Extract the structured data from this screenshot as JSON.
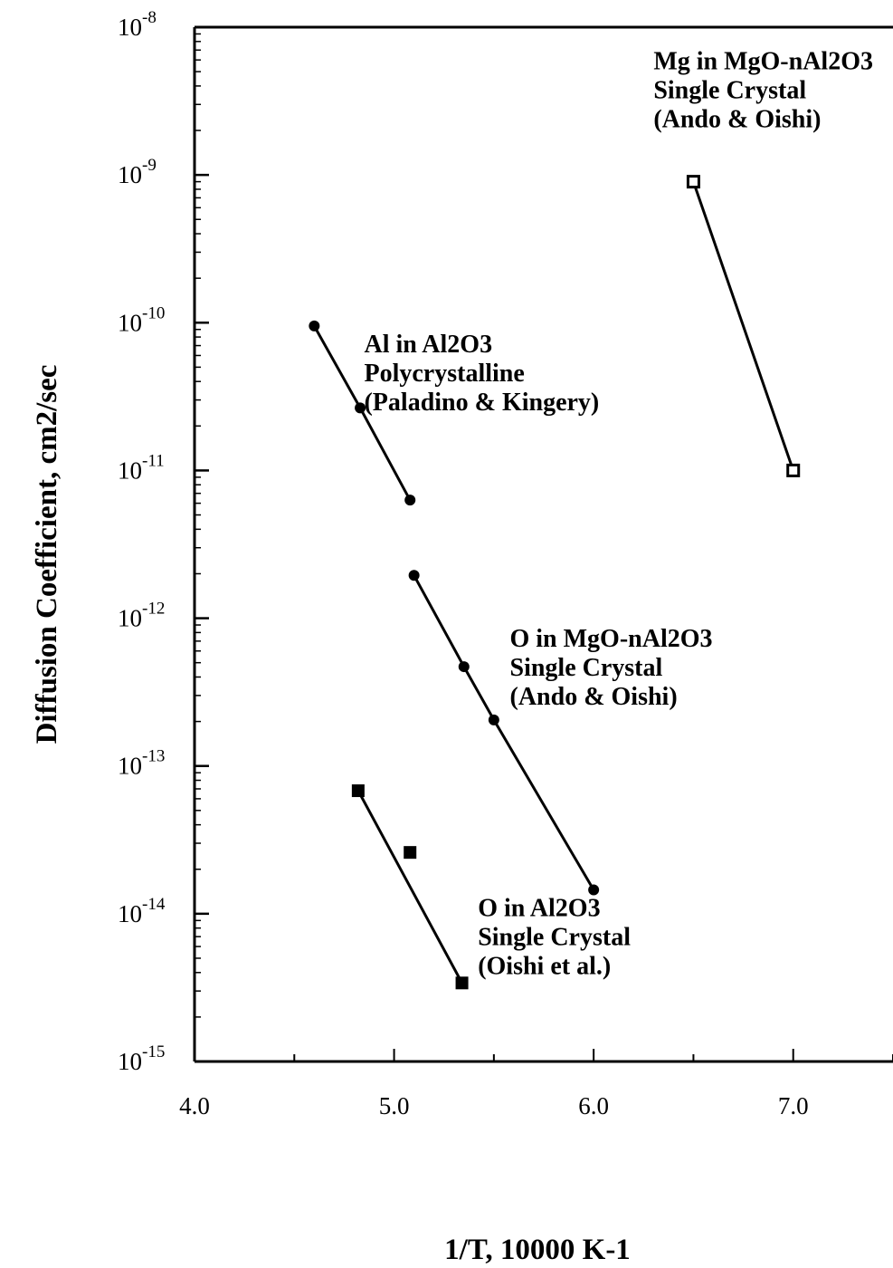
{
  "chart_data": {
    "type": "scatter",
    "title": "",
    "xlabel": "1/T,  10000  K-1",
    "ylabel": "Diffusion  Coefficient,  cm2/sec",
    "xlim": [
      4.0,
      7.5
    ],
    "ylim": [
      1e-15,
      1e-08
    ],
    "yscale": "log",
    "x_ticks": [
      "4.0",
      "5.0",
      "6.0",
      "7.0"
    ],
    "y_tick_base": "10",
    "y_tick_exponents": [
      "-8",
      "-9",
      "-10",
      "-11",
      "-12",
      "-13",
      "-14",
      "-15"
    ],
    "grid": false,
    "legend": "none",
    "series": [
      {
        "name": "Mg in MgO-nAl2O3 Single Crystal (Ando & Oishi)",
        "label_lines": [
          "Mg in MgO-nAl2O3",
          "Single Crystal",
          "(Ando & Oishi)"
        ],
        "marker": "open-square",
        "points": [
          [
            6.5,
            9e-10
          ],
          [
            7.0,
            1e-11
          ]
        ]
      },
      {
        "name": "Al in Al2O3 Polycrystalline (Paladino & Kingery)",
        "label_lines": [
          "Al in Al2O3",
          "Polycrystalline",
          "(Paladino & Kingery)"
        ],
        "marker": "diamond",
        "points": [
          [
            4.6,
            9.5e-11
          ],
          [
            4.83,
            2.65e-11
          ],
          [
            5.08,
            6.3e-12
          ]
        ]
      },
      {
        "name": "O in MgO-nAl2O3 Single Crystal (Ando & Oishi)",
        "label_lines": [
          "O in MgO-nAl2O3",
          "Single Crystal",
          "(Ando & Oishi)"
        ],
        "marker": "diamond",
        "points": [
          [
            5.1,
            1.95e-12
          ],
          [
            5.35,
            4.7e-13
          ],
          [
            5.5,
            2.05e-13
          ],
          [
            6.0,
            1.45e-14
          ]
        ]
      },
      {
        "name": "O in Al2O3 Single Crystal (Oishi et al.)",
        "label_lines": [
          "O in Al2O3",
          "Single Crystal",
          "(Oishi et al.)"
        ],
        "marker": "filled-square",
        "points": [
          [
            4.82,
            6.8e-14
          ],
          [
            5.08,
            2.6e-14
          ],
          [
            5.34,
            3.4e-15
          ]
        ],
        "fit": [
          [
            4.82,
            6.8e-14
          ],
          [
            5.34,
            3.4e-15
          ]
        ]
      }
    ]
  }
}
